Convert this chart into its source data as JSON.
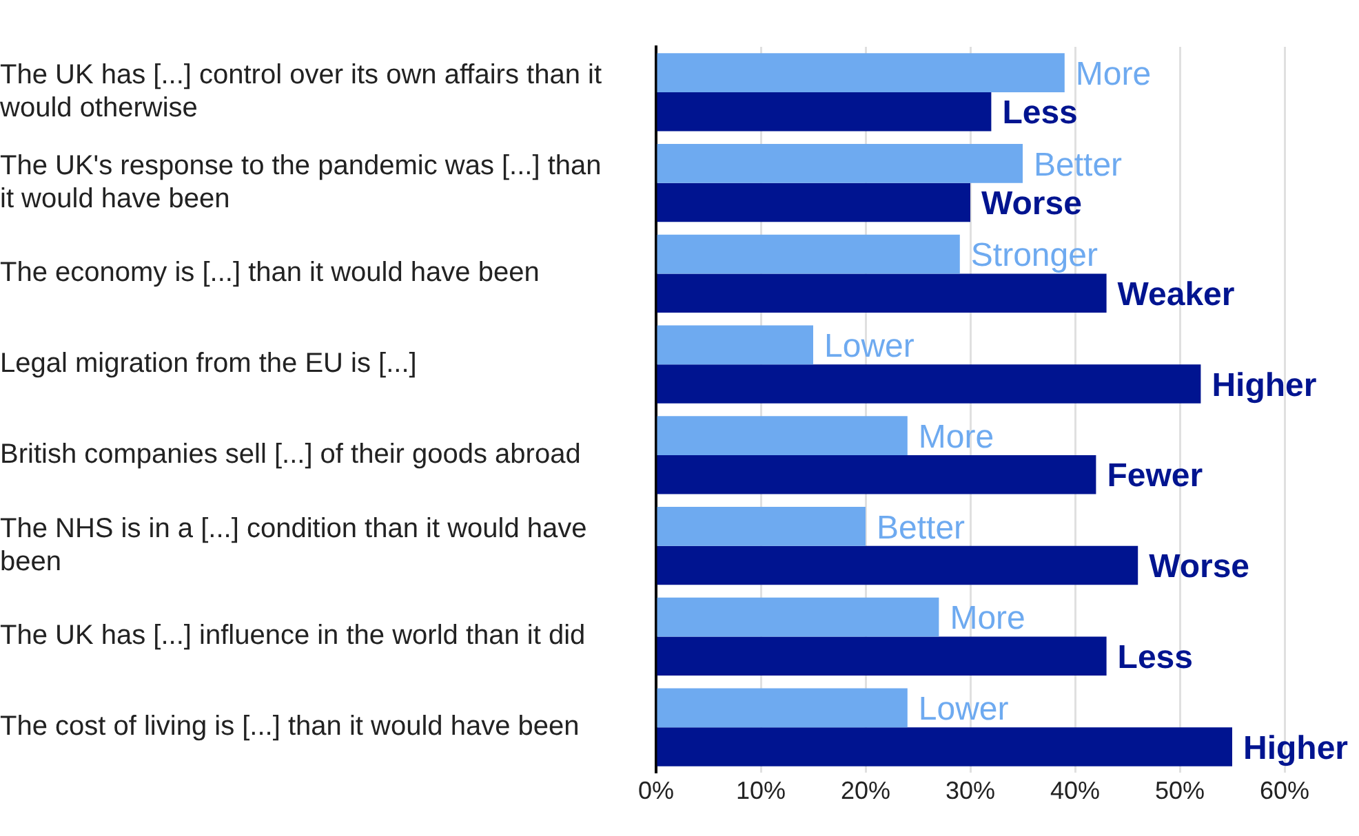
{
  "chart_data": {
    "type": "bar",
    "orientation": "horizontal",
    "categories": [
      "The UK has [...] control over its own affairs than it would otherwise",
      "The UK's response to the pandemic was [...] than it would have been",
      "The economy is [...] than it would have been",
      "Legal migration from the EU is [...]",
      "British companies sell [...] of their goods abroad",
      "The NHS is in a [...] condition than it would have been",
      "The UK has [...] influence in the world than it did",
      "The cost of living is [...] than it would have been"
    ],
    "series": [
      {
        "color": "#6eaaf0",
        "values": [
          39,
          35,
          29,
          15,
          24,
          20,
          27,
          24
        ],
        "value_labels": [
          "More",
          "Better",
          "Stronger",
          "Lower",
          "More",
          "Better",
          "More",
          "Lower"
        ]
      },
      {
        "color": "#001490",
        "values": [
          32,
          30,
          43,
          52,
          42,
          46,
          43,
          55
        ],
        "value_labels": [
          "Less",
          "Worse",
          "Weaker",
          "Higher",
          "Fewer",
          "Worse",
          "Less",
          "Higher"
        ]
      }
    ],
    "xlim": [
      0,
      60
    ],
    "xticks": [
      {
        "value": 0,
        "label": "0%"
      },
      {
        "value": 10,
        "label": "10%"
      },
      {
        "value": 20,
        "label": "20%"
      },
      {
        "value": 30,
        "label": "30%"
      },
      {
        "value": 40,
        "label": "40%"
      },
      {
        "value": 50,
        "label": "50%"
      },
      {
        "value": 60,
        "label": "60%"
      }
    ],
    "grid": "x"
  }
}
